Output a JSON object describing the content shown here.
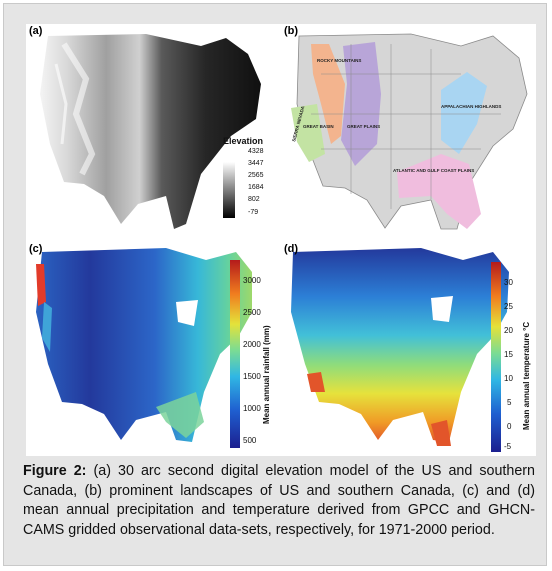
{
  "panels": {
    "a": {
      "label": "(a)",
      "legend_title": "Elevation",
      "legend_ticks": [
        "4328",
        "3447",
        "2565",
        "1684",
        "802",
        "-79"
      ]
    },
    "b": {
      "label": "(b)",
      "regions": [
        "ROCKY MOUNTAINS",
        "SIERRA NEVADA",
        "GREAT BASIN",
        "GREAT PLAINS",
        "APPALACHIAN HIGHLANDS",
        "ATLANTIC AND GULF COAST PLAINS"
      ]
    },
    "c": {
      "label": "(c)",
      "colorbar_label": "Mean annual rainfall (mm)",
      "colorbar_ticks": [
        "3000",
        "2500",
        "2000",
        "1500",
        "1000",
        "500"
      ]
    },
    "d": {
      "label": "(d)",
      "colorbar_label": "Mean annual temperature °C",
      "colorbar_ticks": [
        "30",
        "25",
        "20",
        "15",
        "10",
        "5",
        "0",
        "-5"
      ]
    }
  },
  "caption": {
    "prefix": "Figure 2:",
    "text": "(a) 30 arc second digital elevation model of the US and southern Canada, (b) prominent landscapes of US and southern Canada, (c) and (d) mean annual precipitation and temperature derived from GPCC and GHCN-CAMS gridded observational data-sets, respectively, for 1971-2000 period."
  },
  "colors": {
    "frame_bg": "#e5e5e5",
    "rocky": "#f3b48e",
    "great_basin": "#c3e3a3",
    "great_plains": "#b8a5d8",
    "appalachian": "#a9d5f2",
    "coastal": "#f0bdde"
  }
}
